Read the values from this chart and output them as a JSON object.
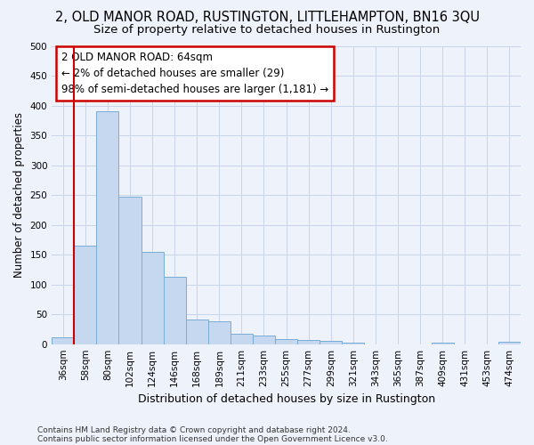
{
  "title1": "2, OLD MANOR ROAD, RUSTINGTON, LITTLEHAMPTON, BN16 3QU",
  "title2": "Size of property relative to detached houses in Rustington",
  "xlabel": "Distribution of detached houses by size in Rustington",
  "ylabel": "Number of detached properties",
  "footnote1": "Contains HM Land Registry data © Crown copyright and database right 2024.",
  "footnote2": "Contains public sector information licensed under the Open Government Licence v3.0.",
  "categories": [
    "36sqm",
    "58sqm",
    "80sqm",
    "102sqm",
    "124sqm",
    "146sqm",
    "168sqm",
    "189sqm",
    "211sqm",
    "233sqm",
    "255sqm",
    "277sqm",
    "299sqm",
    "321sqm",
    "343sqm",
    "365sqm",
    "387sqm",
    "409sqm",
    "431sqm",
    "453sqm",
    "474sqm"
  ],
  "values": [
    12,
    165,
    390,
    247,
    155,
    113,
    42,
    38,
    17,
    14,
    9,
    7,
    5,
    3,
    0,
    0,
    0,
    2,
    0,
    0,
    4
  ],
  "bar_color": "#c5d8f0",
  "bar_edge_color": "#7aadd4",
  "annotation_line_color": "#cc0000",
  "annotation_box_edge_color": "#cc0000",
  "annotation_box_text_line1": "2 OLD MANOR ROAD: 64sqm",
  "annotation_box_text_line2": "← 2% of detached houses are smaller (29)",
  "annotation_box_text_line3": "98% of semi-detached houses are larger (1,181) →",
  "ylim": [
    0,
    500
  ],
  "yticks": [
    0,
    50,
    100,
    150,
    200,
    250,
    300,
    350,
    400,
    450,
    500
  ],
  "grid_color": "#c8d4e8",
  "background_color": "#eef2fb",
  "title1_fontsize": 10.5,
  "title2_fontsize": 9.5,
  "xlabel_fontsize": 9,
  "ylabel_fontsize": 8.5,
  "tick_fontsize": 7.5,
  "annotation_fontsize": 8.5,
  "footnote_fontsize": 6.5,
  "red_line_x": 0.5
}
